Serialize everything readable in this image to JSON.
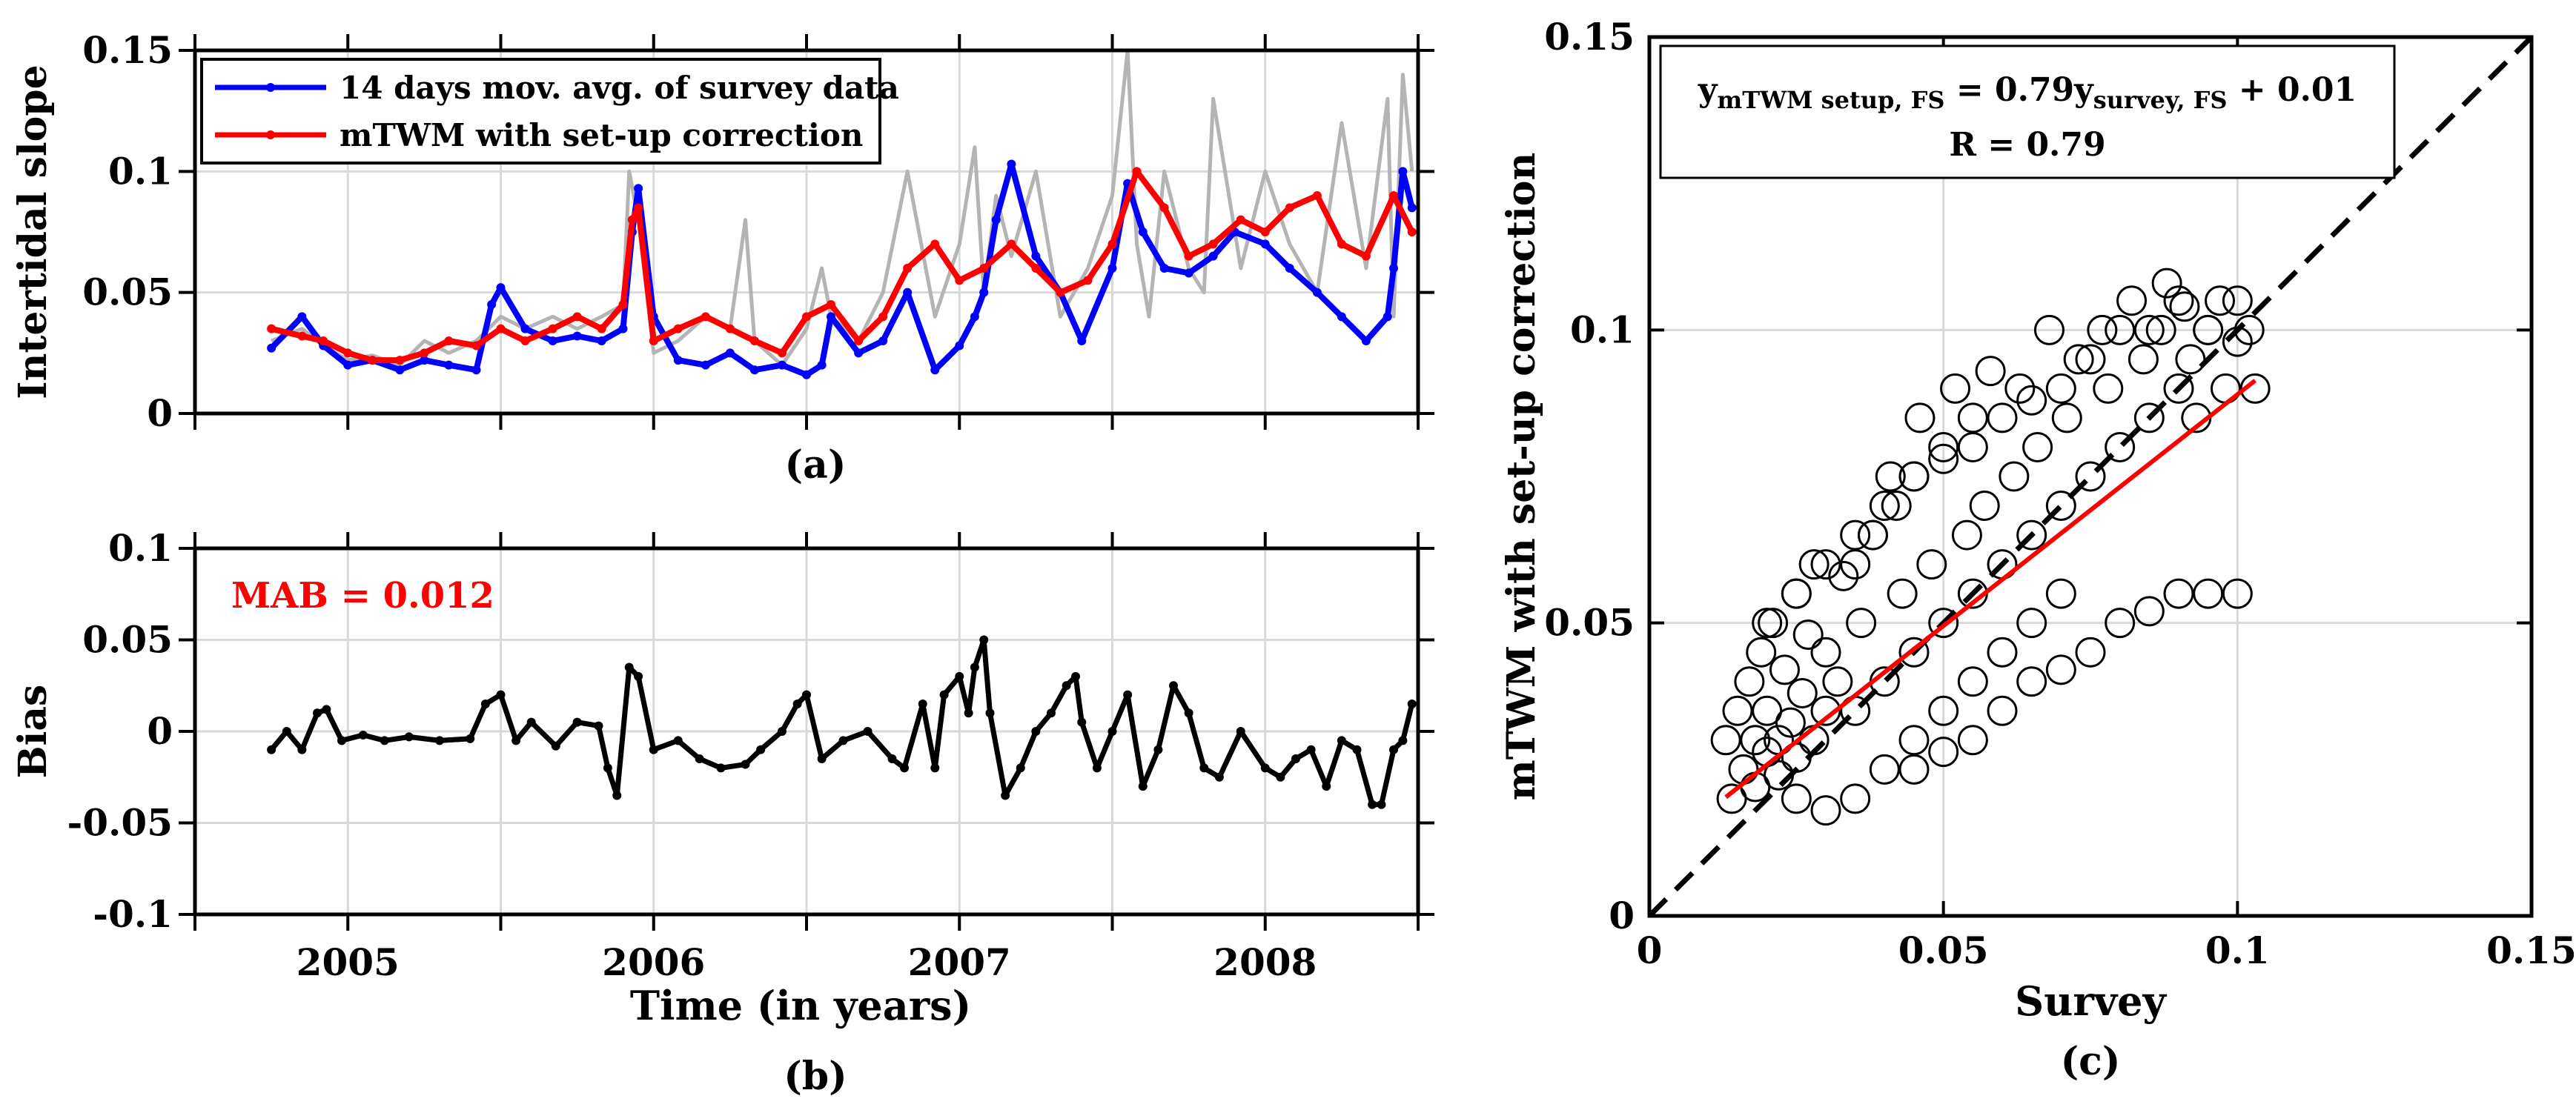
{
  "chart_data": [
    {
      "id": "a",
      "type": "line",
      "panel_label": "(a)",
      "title": "",
      "xlabel": "",
      "ylabel": "Intertidal slope",
      "xlim": [
        2004.5,
        2008.5
      ],
      "ylim": [
        0,
        0.15
      ],
      "yticks": [
        0,
        0.05,
        0.1,
        0.15
      ],
      "ytick_labels": [
        "0",
        "0.05",
        "0.1",
        "0.15"
      ],
      "grid": true,
      "legend": "top-left",
      "series": [
        {
          "name": "14 days mov. avg. of survey data",
          "color": "#0000ff",
          "x": [
            2004.75,
            2004.85,
            2004.92,
            2005.0,
            2005.08,
            2005.17,
            2005.25,
            2005.33,
            2005.42,
            2005.47,
            2005.5,
            2005.58,
            2005.67,
            2005.75,
            2005.83,
            2005.9,
            2005.93,
            2005.95,
            2006.0,
            2006.08,
            2006.17,
            2006.25,
            2006.33,
            2006.42,
            2006.5,
            2006.55,
            2006.58,
            2006.67,
            2006.75,
            2006.83,
            2006.92,
            2007.0,
            2007.05,
            2007.08,
            2007.12,
            2007.17,
            2007.25,
            2007.33,
            2007.4,
            2007.5,
            2007.55,
            2007.6,
            2007.67,
            2007.75,
            2007.83,
            2007.9,
            2008.0,
            2008.08,
            2008.17,
            2008.25,
            2008.33,
            2008.4,
            2008.42,
            2008.45,
            2008.48
          ],
          "values": [
            0.027,
            0.04,
            0.028,
            0.02,
            0.022,
            0.018,
            0.022,
            0.02,
            0.018,
            0.045,
            0.052,
            0.035,
            0.03,
            0.032,
            0.03,
            0.035,
            0.075,
            0.093,
            0.04,
            0.022,
            0.02,
            0.025,
            0.018,
            0.02,
            0.016,
            0.02,
            0.04,
            0.025,
            0.03,
            0.05,
            0.018,
            0.028,
            0.04,
            0.05,
            0.08,
            0.103,
            0.065,
            0.05,
            0.03,
            0.06,
            0.095,
            0.075,
            0.06,
            0.058,
            0.065,
            0.075,
            0.07,
            0.06,
            0.05,
            0.04,
            0.03,
            0.04,
            0.06,
            0.1,
            0.085
          ]
        },
        {
          "name": "mTWM with set-up correction",
          "color": "#ff0000",
          "x": [
            2004.75,
            2004.85,
            2004.92,
            2005.0,
            2005.08,
            2005.17,
            2005.25,
            2005.33,
            2005.42,
            2005.5,
            2005.58,
            2005.67,
            2005.75,
            2005.83,
            2005.9,
            2005.93,
            2005.95,
            2006.0,
            2006.08,
            2006.17,
            2006.25,
            2006.33,
            2006.42,
            2006.5,
            2006.58,
            2006.67,
            2006.75,
            2006.83,
            2006.92,
            2007.0,
            2007.08,
            2007.17,
            2007.25,
            2007.33,
            2007.42,
            2007.5,
            2007.58,
            2007.67,
            2007.75,
            2007.83,
            2007.92,
            2008.0,
            2008.08,
            2008.17,
            2008.25,
            2008.33,
            2008.42,
            2008.48
          ],
          "values": [
            0.035,
            0.032,
            0.03,
            0.025,
            0.022,
            0.022,
            0.025,
            0.03,
            0.028,
            0.035,
            0.03,
            0.035,
            0.04,
            0.035,
            0.045,
            0.08,
            0.085,
            0.03,
            0.035,
            0.04,
            0.035,
            0.03,
            0.025,
            0.04,
            0.045,
            0.03,
            0.04,
            0.06,
            0.07,
            0.055,
            0.06,
            0.07,
            0.06,
            0.05,
            0.055,
            0.07,
            0.1,
            0.085,
            0.065,
            0.07,
            0.08,
            0.075,
            0.085,
            0.09,
            0.07,
            0.065,
            0.09,
            0.075
          ]
        },
        {
          "name": "",
          "color": "#b4b4b4",
          "x": [
            2004.75,
            2004.85,
            2004.92,
            2005.0,
            2005.08,
            2005.17,
            2005.25,
            2005.33,
            2005.42,
            2005.5,
            2005.58,
            2005.67,
            2005.75,
            2005.83,
            2005.9,
            2005.92,
            2005.95,
            2006.0,
            2006.08,
            2006.17,
            2006.25,
            2006.3,
            2006.33,
            2006.42,
            2006.5,
            2006.55,
            2006.58,
            2006.67,
            2006.75,
            2006.83,
            2006.92,
            2007.0,
            2007.05,
            2007.08,
            2007.12,
            2007.17,
            2007.25,
            2007.33,
            2007.42,
            2007.5,
            2007.55,
            2007.58,
            2007.62,
            2007.67,
            2007.75,
            2007.8,
            2007.83,
            2007.92,
            2008.0,
            2008.08,
            2008.17,
            2008.25,
            2008.33,
            2008.4,
            2008.42,
            2008.45,
            2008.48
          ],
          "values": [
            0.03,
            0.035,
            0.028,
            0.022,
            0.024,
            0.02,
            0.03,
            0.025,
            0.03,
            0.04,
            0.035,
            0.04,
            0.035,
            0.04,
            0.045,
            0.1,
            0.08,
            0.025,
            0.03,
            0.04,
            0.035,
            0.08,
            0.03,
            0.02,
            0.035,
            0.06,
            0.04,
            0.03,
            0.05,
            0.1,
            0.04,
            0.07,
            0.11,
            0.05,
            0.09,
            0.065,
            0.1,
            0.04,
            0.06,
            0.09,
            0.15,
            0.07,
            0.04,
            0.1,
            0.06,
            0.05,
            0.13,
            0.06,
            0.1,
            0.07,
            0.05,
            0.12,
            0.06,
            0.13,
            0.04,
            0.14,
            0.1
          ]
        }
      ]
    },
    {
      "id": "b",
      "type": "scatter",
      "panel_label": "(b)",
      "title": "",
      "xlabel": "Time (in years)",
      "ylabel": "Bias",
      "xlim": [
        2004.5,
        2008.5
      ],
      "ylim": [
        -0.1,
        0.1
      ],
      "yticks": [
        -0.1,
        -0.05,
        0,
        0.05,
        0.1
      ],
      "ytick_labels": [
        "-0.1",
        "-0.05",
        "0",
        "0.05",
        "0.1"
      ],
      "xtick_labels": [
        "2005",
        "2006",
        "2007",
        "2008"
      ],
      "xtick_positions": [
        2005,
        2006,
        2007,
        2008
      ],
      "grid": true,
      "annotation": "MAB = 0.012",
      "annotation_color": "#ff0000",
      "series": [
        {
          "name": "Bias",
          "color": "#000000",
          "x": [
            2004.75,
            2004.8,
            2004.85,
            2004.9,
            2004.93,
            2004.98,
            2005.05,
            2005.12,
            2005.2,
            2005.3,
            2005.4,
            2005.45,
            2005.5,
            2005.55,
            2005.6,
            2005.68,
            2005.75,
            2005.82,
            2005.85,
            2005.88,
            2005.92,
            2005.95,
            2006.0,
            2006.08,
            2006.15,
            2006.22,
            2006.3,
            2006.35,
            2006.42,
            2006.47,
            2006.5,
            2006.55,
            2006.62,
            2006.7,
            2006.78,
            2006.82,
            2006.88,
            2006.92,
            2006.95,
            2007.0,
            2007.03,
            2007.05,
            2007.08,
            2007.1,
            2007.15,
            2007.2,
            2007.25,
            2007.3,
            2007.35,
            2007.38,
            2007.4,
            2007.45,
            2007.5,
            2007.55,
            2007.6,
            2007.65,
            2007.7,
            2007.75,
            2007.8,
            2007.85,
            2007.92,
            2008.0,
            2008.05,
            2008.1,
            2008.15,
            2008.2,
            2008.25,
            2008.3,
            2008.35,
            2008.38,
            2008.42,
            2008.45,
            2008.48
          ],
          "values": [
            -0.01,
            0.0,
            -0.01,
            0.01,
            0.012,
            -0.005,
            -0.002,
            -0.005,
            -0.003,
            -0.005,
            -0.004,
            0.015,
            0.02,
            -0.005,
            0.005,
            -0.008,
            0.005,
            0.003,
            -0.02,
            -0.035,
            0.035,
            0.03,
            -0.01,
            -0.005,
            -0.015,
            -0.02,
            -0.018,
            -0.01,
            0.0,
            0.015,
            0.02,
            -0.015,
            -0.005,
            0.0,
            -0.015,
            -0.02,
            0.015,
            -0.02,
            0.02,
            0.03,
            0.01,
            0.035,
            0.05,
            0.01,
            -0.035,
            -0.02,
            0.0,
            0.01,
            0.025,
            0.03,
            0.005,
            -0.02,
            0.0,
            0.02,
            -0.03,
            -0.01,
            0.025,
            0.01,
            -0.02,
            -0.025,
            0.0,
            -0.02,
            -0.025,
            -0.015,
            -0.01,
            -0.03,
            -0.005,
            -0.01,
            -0.04,
            -0.04,
            -0.01,
            -0.005,
            0.015
          ]
        }
      ]
    },
    {
      "id": "c",
      "type": "scatter",
      "panel_label": "(c)",
      "title": "",
      "xlabel": "Survey",
      "ylabel": "mTWM with set-up correction",
      "xlim": [
        0,
        0.15
      ],
      "ylim": [
        0,
        0.15
      ],
      "xticks": [
        0,
        0.05,
        0.1,
        0.15
      ],
      "xtick_labels": [
        "0",
        "0.05",
        "0.1",
        "0.15"
      ],
      "yticks": [
        0,
        0.05,
        0.1,
        0.15
      ],
      "ytick_labels": [
        "0",
        "0.05",
        "0.1",
        "0.15"
      ],
      "grid": true,
      "equation_line1": {
        "base": "y",
        "sub1": "mTWM setup, FS",
        "mid": " = 0.79y",
        "sub2": "survey, FS",
        "end": " + 0.01"
      },
      "equation_line2": "R = 0.79",
      "reference_line": {
        "name": "1:1 line",
        "color": "#000000",
        "x": [
          0,
          0.15
        ],
        "y": [
          0,
          0.15
        ]
      },
      "fit_line": {
        "name": "fit",
        "color": "#ff0000",
        "slope": 0.79,
        "intercept": 0.01,
        "x": [
          0.013,
          0.103
        ]
      },
      "series": [
        {
          "name": "points",
          "color": "#000000",
          "x": [
            0.013,
            0.014,
            0.015,
            0.016,
            0.017,
            0.018,
            0.018,
            0.019,
            0.02,
            0.02,
            0.021,
            0.022,
            0.022,
            0.023,
            0.024,
            0.025,
            0.025,
            0.026,
            0.027,
            0.028,
            0.028,
            0.03,
            0.03,
            0.032,
            0.033,
            0.035,
            0.036,
            0.038,
            0.04,
            0.041,
            0.043,
            0.045,
            0.046,
            0.048,
            0.05,
            0.052,
            0.054,
            0.055,
            0.057,
            0.058,
            0.06,
            0.062,
            0.063,
            0.065,
            0.066,
            0.068,
            0.07,
            0.071,
            0.073,
            0.075,
            0.077,
            0.078,
            0.08,
            0.082,
            0.084,
            0.085,
            0.087,
            0.088,
            0.09,
            0.091,
            0.092,
            0.093,
            0.095,
            0.097,
            0.098,
            0.1,
            0.102,
            0.103,
            0.035,
            0.038,
            0.042,
            0.045,
            0.05,
            0.055,
            0.06,
            0.065,
            0.07,
            0.075,
            0.08,
            0.085,
            0.09,
            0.095,
            0.1,
            0.045,
            0.05,
            0.055,
            0.06,
            0.065,
            0.07,
            0.075,
            0.08,
            0.085,
            0.09,
            0.095,
            0.1,
            0.025,
            0.03,
            0.035,
            0.04,
            0.045,
            0.05,
            0.055,
            0.06,
            0.065,
            0.07,
            0.02,
            0.025,
            0.03,
            0.035,
            0.04,
            0.045,
            0.05,
            0.055
          ],
          "values": [
            0.03,
            0.02,
            0.035,
            0.025,
            0.04,
            0.03,
            0.022,
            0.045,
            0.035,
            0.028,
            0.05,
            0.03,
            0.024,
            0.042,
            0.033,
            0.055,
            0.027,
            0.038,
            0.048,
            0.03,
            0.06,
            0.035,
            0.045,
            0.04,
            0.058,
            0.035,
            0.05,
            0.065,
            0.04,
            0.075,
            0.055,
            0.045,
            0.085,
            0.06,
            0.05,
            0.09,
            0.065,
            0.055,
            0.07,
            0.093,
            0.06,
            0.075,
            0.09,
            0.065,
            0.08,
            0.1,
            0.07,
            0.085,
            0.095,
            0.075,
            0.1,
            0.09,
            0.08,
            0.105,
            0.095,
            0.085,
            0.1,
            0.108,
            0.09,
            0.104,
            0.095,
            0.085,
            0.1,
            0.105,
            0.09,
            0.105,
            0.1,
            0.09,
            0.06,
            0.065,
            0.07,
            0.075,
            0.078,
            0.08,
            0.085,
            0.088,
            0.09,
            0.095,
            0.1,
            0.1,
            0.105,
            0.1,
            0.098,
            0.025,
            0.028,
            0.03,
            0.035,
            0.04,
            0.042,
            0.045,
            0.05,
            0.052,
            0.055,
            0.055,
            0.055,
            0.02,
            0.018,
            0.02,
            0.025,
            0.03,
            0.035,
            0.04,
            0.045,
            0.05,
            0.055,
            0.05,
            0.055,
            0.06,
            0.065,
            0.07,
            0.075,
            0.08,
            0.085
          ]
        }
      ]
    }
  ]
}
